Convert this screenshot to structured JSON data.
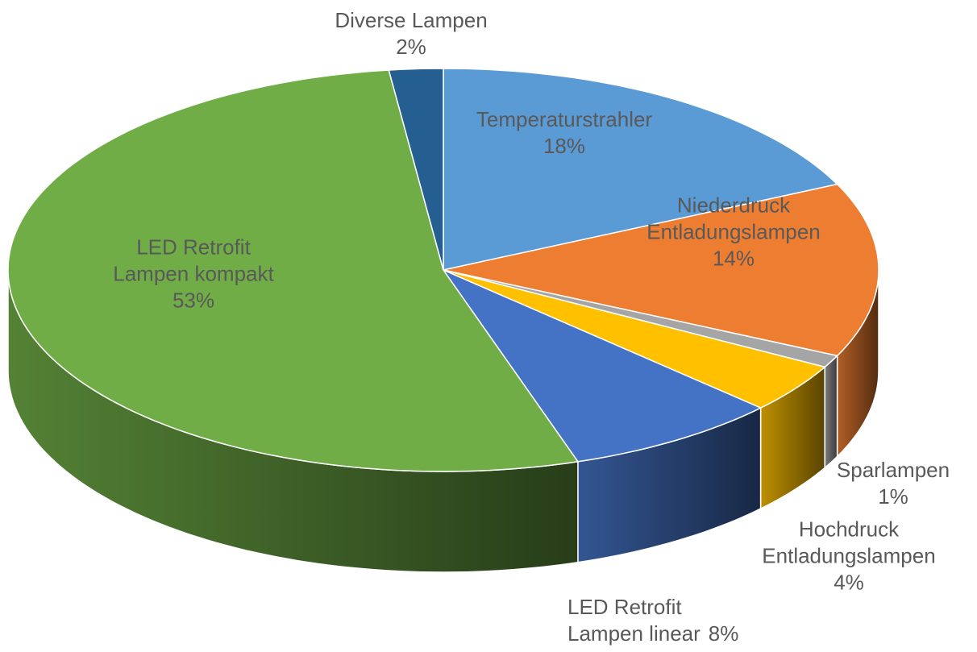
{
  "chart_data": {
    "type": "pie3d",
    "categories": [
      "Temperaturstrahler",
      "Niederdruck Entladungslampen",
      "Sparlampen",
      "Hochdruck Entladungslampen",
      "LED Retrofit Lampen linear",
      "LED Retrofit Lampen kompakt",
      "Diverse Lampen"
    ],
    "values": [
      18,
      14,
      1,
      4,
      8,
      53,
      2
    ],
    "value_labels": [
      "18%",
      "14%",
      "1%",
      "4%",
      "8%",
      "53%",
      "2%"
    ],
    "colors": [
      "#5b9bd5",
      "#ed7d31",
      "#a5a5a5",
      "#ffc000",
      "#4472c4",
      "#70ad47",
      "#255e91"
    ]
  }
}
